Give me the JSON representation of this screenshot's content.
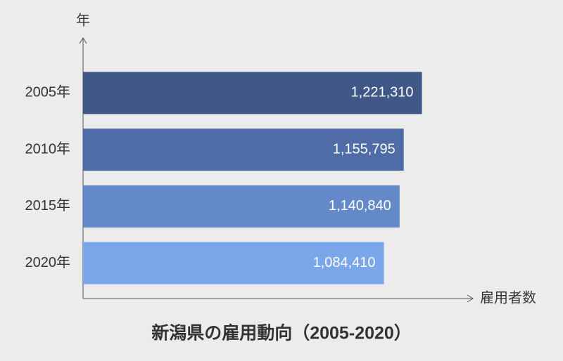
{
  "chart_data": {
    "type": "hbar",
    "title": "新潟県の雇用動向（2005-2020）",
    "y_label": "年",
    "x_label": "雇用者数",
    "categories": [
      "2005年",
      "2010年",
      "2015年",
      "2020年"
    ],
    "values": [
      1221310,
      1155795,
      1140840,
      1084410
    ],
    "value_labels": [
      "1,221,310",
      "1,155,795",
      "1,140,840",
      "1,084,410"
    ],
    "colors": [
      "#3f5887",
      "#4f6ca7",
      "#6389c9",
      "#7aa6ea"
    ],
    "xlim": [
      0,
      1400000
    ]
  }
}
